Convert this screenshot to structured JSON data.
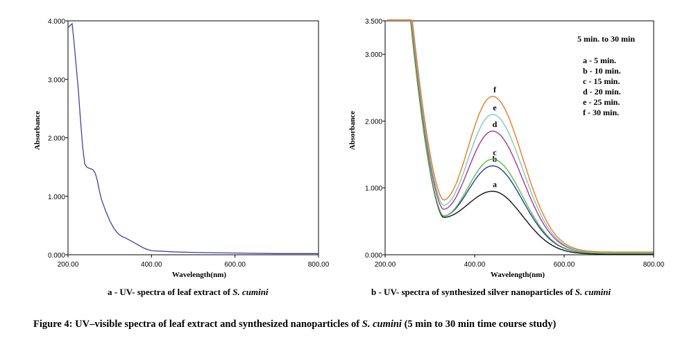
{
  "chart_data": [
    {
      "type": "line",
      "title": "",
      "xlabel": "Wavelength(nm)",
      "ylabel": "Absorbance",
      "xlim": [
        200,
        800
      ],
      "ylim": [
        0,
        4
      ],
      "x_ticks": [
        "200.00",
        "400.00",
        "600.00",
        "800.00"
      ],
      "y_ticks": [
        "0.000",
        "1.000",
        "2.000",
        "3.000",
        "4.000"
      ],
      "grid": false,
      "series": [
        {
          "color": "#3f3fa8",
          "points": [
            [
              200,
              3.88
            ],
            [
              205,
              3.92
            ],
            [
              210,
              3.95
            ],
            [
              215,
              3.6
            ],
            [
              220,
              3.2
            ],
            [
              225,
              2.8
            ],
            [
              230,
              2.3
            ],
            [
              235,
              1.85
            ],
            [
              240,
              1.55
            ],
            [
              245,
              1.5
            ],
            [
              250,
              1.48
            ],
            [
              255,
              1.47
            ],
            [
              260,
              1.45
            ],
            [
              265,
              1.4
            ],
            [
              270,
              1.28
            ],
            [
              275,
              1.1
            ],
            [
              280,
              0.95
            ],
            [
              290,
              0.75
            ],
            [
              300,
              0.58
            ],
            [
              310,
              0.45
            ],
            [
              320,
              0.36
            ],
            [
              330,
              0.31
            ],
            [
              340,
              0.28
            ],
            [
              350,
              0.24
            ],
            [
              360,
              0.2
            ],
            [
              370,
              0.16
            ],
            [
              380,
              0.12
            ],
            [
              390,
              0.09
            ],
            [
              400,
              0.07
            ],
            [
              450,
              0.05
            ],
            [
              500,
              0.04
            ],
            [
              600,
              0.03
            ],
            [
              700,
              0.02
            ],
            [
              800,
              0.02
            ]
          ]
        }
      ]
    },
    {
      "type": "line",
      "title": "",
      "xlabel": "Wavelength(nm)",
      "ylabel": "Absorbance",
      "xlim": [
        200,
        800
      ],
      "ylim": [
        0,
        3.5
      ],
      "x_ticks": [
        "200.00",
        "400.00",
        "600.00",
        "800.00"
      ],
      "y_ticks": [
        "0.000",
        "1.000",
        "2.000",
        "3.000",
        "3.500"
      ],
      "grid": false,
      "legend_title": "5 min. to 30 min",
      "legend": [
        "a - 5 min.",
        "b - 10 min.",
        "c - 15 min.",
        "d - 20 min.",
        "e - 25 min.",
        "f - 30 min."
      ],
      "series": [
        {
          "label": "a",
          "color": "#111111",
          "peak": 0.95,
          "valley": 0.56,
          "tail": 0.01
        },
        {
          "label": "b",
          "color": "#2233aa",
          "peak": 1.33,
          "valley": 0.58,
          "tail": 0.02
        },
        {
          "label": "c",
          "color": "#55bb44",
          "peak": 1.43,
          "valley": 0.58,
          "tail": 0.02
        },
        {
          "label": "d",
          "color": "#aa3399",
          "peak": 1.85,
          "valley": 0.68,
          "tail": 0.03
        },
        {
          "label": "e",
          "color": "#77ccbb",
          "peak": 2.1,
          "valley": 0.74,
          "tail": 0.03
        },
        {
          "label": "f",
          "color": "#ee7722",
          "peak": 2.37,
          "valley": 0.82,
          "tail": 0.04
        }
      ]
    }
  ],
  "captions": {
    "a_prefix": "a - UV- spectra of  leaf extract of ",
    "a_species": "S. cumini",
    "b_prefix": "b - UV- spectra of synthesized silver nanoparticles of ",
    "b_species": "S. cumini",
    "figure_prefix": "Figure 4: UV–visible spectra of leaf extract and synthesized nanoparticles of ",
    "figure_species": "S. cumini",
    "figure_suffix": " (5 min to 30 min time course study)"
  }
}
